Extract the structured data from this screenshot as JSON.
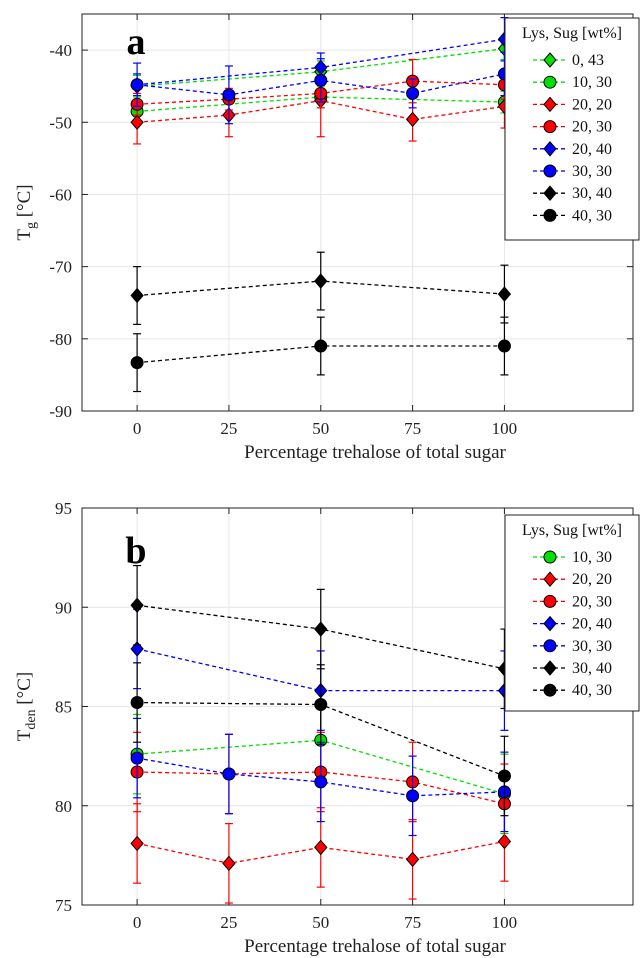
{
  "chart_data": [
    {
      "type": "line",
      "panel_label": "a",
      "xlabel": "Percentage trehalose of total sugar",
      "ylabel": "T",
      "ylabel_sub": "g",
      "ylabel_unit": " [°C]",
      "xlim": [
        -15,
        135
      ],
      "ylim": [
        -90,
        -35
      ],
      "xticks": [
        0,
        25,
        50,
        75,
        100
      ],
      "xtick_labels": [
        "0",
        "25",
        "50",
        "75",
        "100"
      ],
      "yticks": [
        -90,
        -80,
        -70,
        -60,
        -50,
        -40
      ],
      "ytick_labels": [
        "-90",
        "-80",
        "-70",
        "-60",
        "-50",
        "-40"
      ],
      "grid": true,
      "legend_position": "top-right",
      "legend_title": "Lys, Sug [wt%]",
      "series": [
        {
          "name": "0, 43",
          "color": "#00e000",
          "marker": "diamond",
          "x": [
            0,
            50,
            100
          ],
          "y": [
            -45.0,
            -43.0,
            -39.8
          ],
          "err": [
            1.5,
            1.5,
            1.5
          ]
        },
        {
          "name": "10, 30",
          "color": "#00e000",
          "marker": "circle",
          "x": [
            0,
            50,
            100
          ],
          "y": [
            -48.5,
            -46.5,
            -47.2
          ],
          "err": [
            1.5,
            1.5,
            1.5
          ]
        },
        {
          "name": "20, 20",
          "color": "#ff0000",
          "marker": "diamond",
          "x": [
            0,
            25,
            50,
            75,
            100
          ],
          "y": [
            -50.0,
            -49.0,
            -47.0,
            -49.6,
            -47.8
          ],
          "err": [
            3.0,
            3.0,
            5.0,
            3.0,
            3.0
          ]
        },
        {
          "name": "20, 30",
          "color": "#ff0000",
          "marker": "circle",
          "x": [
            0,
            25,
            50,
            75,
            100
          ],
          "y": [
            -47.5,
            -46.8,
            -46.0,
            -44.3,
            -44.8
          ],
          "err": [
            1.5,
            1.5,
            2.0,
            3.0,
            2.0
          ]
        },
        {
          "name": "20, 40",
          "color": "#0000ff",
          "marker": "diamond",
          "x": [
            0,
            50,
            100
          ],
          "y": [
            -44.8,
            -42.4,
            -38.5
          ],
          "err": [
            1.5,
            2.0,
            3.0
          ]
        },
        {
          "name": "30, 30",
          "color": "#0000ff",
          "marker": "circle",
          "x": [
            0,
            25,
            50,
            75,
            100
          ],
          "y": [
            -44.8,
            -46.2,
            -44.2,
            -46.0,
            -43.3
          ],
          "err": [
            3.0,
            4.0,
            3.0,
            2.0,
            3.0
          ]
        },
        {
          "name": "30, 40",
          "color": "#000000",
          "marker": "diamond",
          "x": [
            0,
            50,
            100
          ],
          "y": [
            -74.0,
            -72.0,
            -73.8
          ],
          "err": [
            4.0,
            4.0,
            4.0
          ]
        },
        {
          "name": "40, 30",
          "color": "#000000",
          "marker": "circle",
          "x": [
            0,
            50,
            100
          ],
          "y": [
            -83.3,
            -81.0,
            -81.0
          ],
          "err": [
            4.0,
            4.0,
            4.0
          ]
        }
      ]
    },
    {
      "type": "line",
      "panel_label": "b",
      "xlabel": "Percentage trehalose of total sugar",
      "ylabel": "T",
      "ylabel_sub": "den",
      "ylabel_unit": " [°C]",
      "xlim": [
        -15,
        135
      ],
      "ylim": [
        75,
        95
      ],
      "xticks": [
        0,
        25,
        50,
        75,
        100
      ],
      "xtick_labels": [
        "0",
        "25",
        "50",
        "75",
        "100"
      ],
      "yticks": [
        75,
        80,
        85,
        90,
        95
      ],
      "ytick_labels": [
        "75",
        "80",
        "85",
        "90",
        "95"
      ],
      "grid": true,
      "legend_position": "top-right",
      "legend_title": "Lys, Sug [wt%]",
      "series": [
        {
          "name": "10, 30",
          "color": "#00e000",
          "marker": "circle",
          "x": [
            0,
            50,
            100
          ],
          "y": [
            82.6,
            83.3,
            80.6
          ],
          "err": [
            2.0,
            2.0,
            2.0
          ]
        },
        {
          "name": "20, 20",
          "color": "#ff0000",
          "marker": "diamond",
          "x": [
            0,
            25,
            50,
            75,
            100
          ],
          "y": [
            78.1,
            77.1,
            77.9,
            77.3,
            78.2
          ],
          "err": [
            2.0,
            2.0,
            2.0,
            2.0,
            2.0
          ]
        },
        {
          "name": "20, 30",
          "color": "#ff0000",
          "marker": "circle",
          "x": [
            0,
            25,
            50,
            75,
            100
          ],
          "y": [
            81.7,
            81.6,
            81.7,
            81.2,
            80.1
          ],
          "err": [
            2.0,
            2.0,
            2.0,
            2.0,
            2.0
          ]
        },
        {
          "name": "20, 40",
          "color": "#0000ff",
          "marker": "diamond",
          "x": [
            0,
            50,
            100
          ],
          "y": [
            87.9,
            85.8,
            85.8
          ],
          "err": [
            2.0,
            2.0,
            2.0
          ]
        },
        {
          "name": "30, 30",
          "color": "#0000ff",
          "marker": "circle",
          "x": [
            0,
            25,
            50,
            75,
            100
          ],
          "y": [
            82.4,
            81.6,
            81.2,
            80.5,
            80.7
          ],
          "err": [
            2.0,
            2.0,
            2.0,
            2.0,
            2.0
          ]
        },
        {
          "name": "30, 40",
          "color": "#000000",
          "marker": "diamond",
          "x": [
            0,
            50,
            100
          ],
          "y": [
            90.1,
            88.9,
            86.9
          ],
          "err": [
            2.0,
            2.0,
            2.0
          ]
        },
        {
          "name": "40, 30",
          "color": "#000000",
          "marker": "circle",
          "x": [
            0,
            50,
            100
          ],
          "y": [
            85.2,
            85.1,
            81.5
          ],
          "err": [
            2.0,
            2.0,
            2.0
          ]
        }
      ]
    }
  ]
}
